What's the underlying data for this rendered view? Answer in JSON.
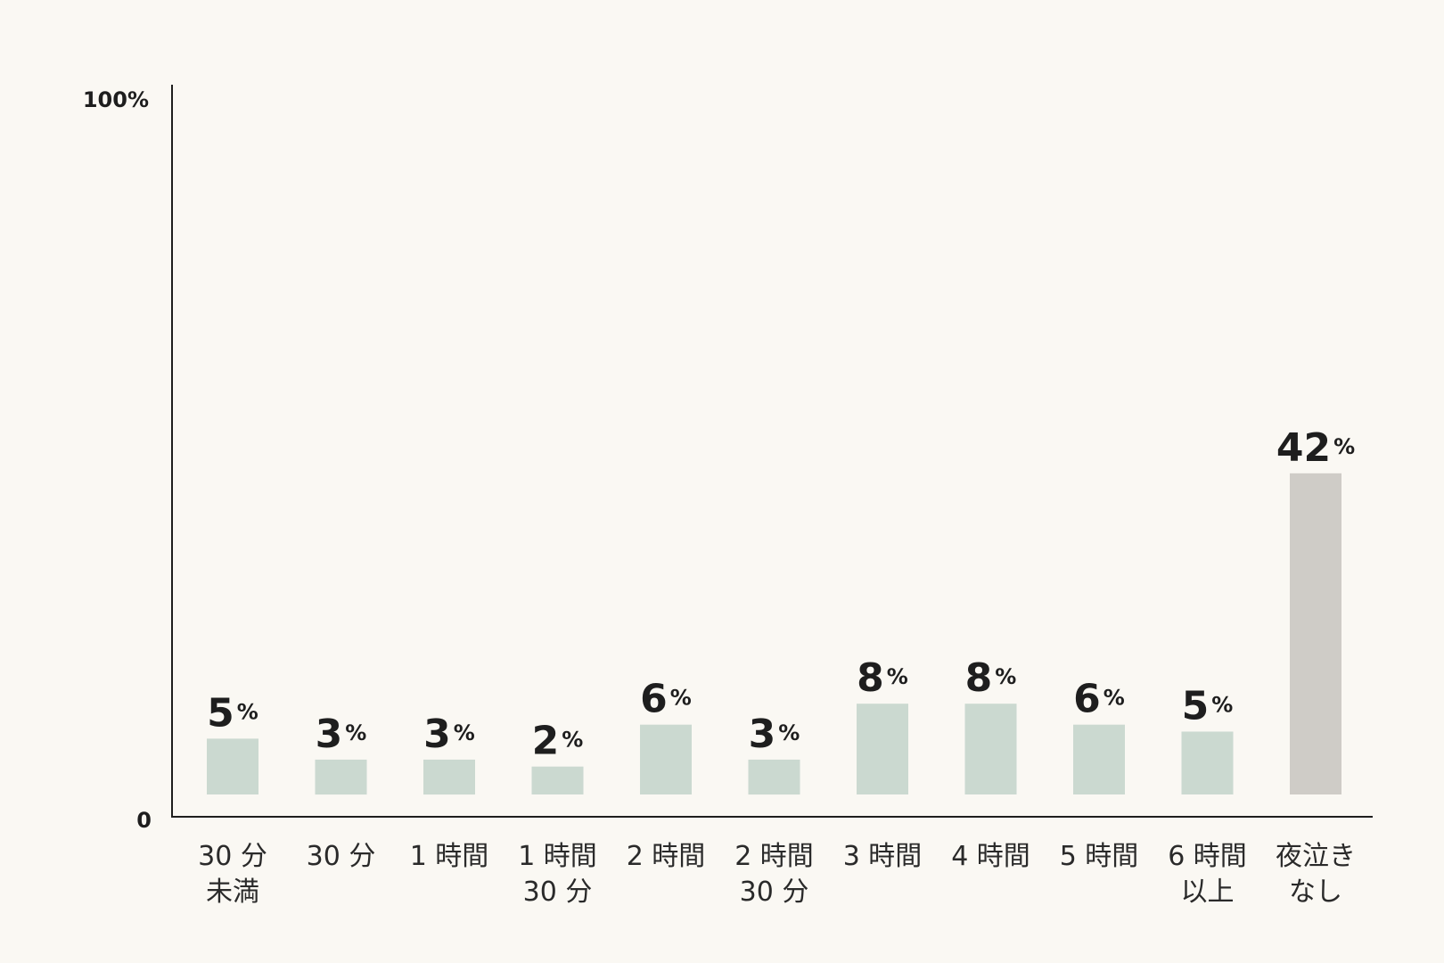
{
  "chart_data": {
    "type": "bar",
    "title": "",
    "xlabel": "",
    "ylabel": "",
    "ylim": [
      0,
      100
    ],
    "y_ticks": [
      "100%",
      "0"
    ],
    "value_unit": "%",
    "categories": [
      [
        "30 分",
        "未満"
      ],
      [
        "30 分"
      ],
      [
        "1 時間"
      ],
      [
        "1 時間",
        "30 分"
      ],
      [
        "2 時間"
      ],
      [
        "2 時間",
        "30 分"
      ],
      [
        "3 時間"
      ],
      [
        "4 時間"
      ],
      [
        "5 時間"
      ],
      [
        "6 時間",
        "以上"
      ],
      [
        "夜泣き",
        "なし"
      ]
    ],
    "values": [
      8,
      5,
      5,
      4,
      10,
      5,
      13,
      13,
      10,
      9,
      46
    ],
    "value_labels": [
      "5",
      "3",
      "3",
      "2",
      "6",
      "3",
      "8",
      "8",
      "6",
      "5",
      "42"
    ],
    "colors": {
      "default_bar": "#cbd9d0",
      "highlight_bar": "#cfccc7",
      "axis": "#1e1e1e"
    },
    "highlight_index": 10,
    "grid": false,
    "legend": "none"
  }
}
